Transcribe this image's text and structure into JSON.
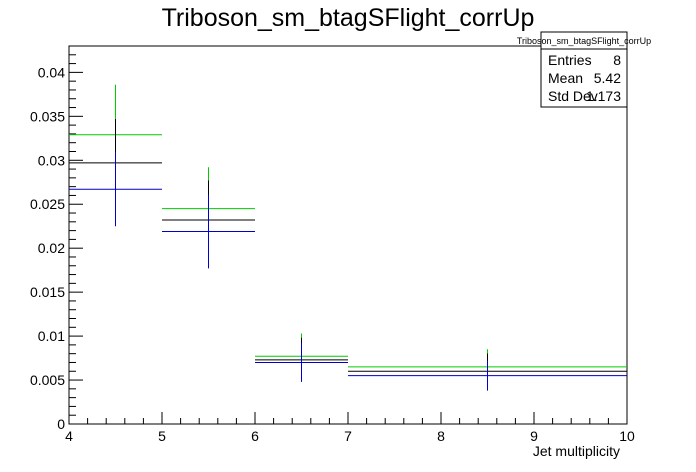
{
  "chart_data": {
    "type": "histogram-errorbars",
    "title": "Triboson_sm_btagSFlight_corrUp",
    "xlabel": "Jet multiplicity",
    "ylabel": "",
    "xlim": [
      4,
      10
    ],
    "ylim": [
      0,
      0.043
    ],
    "x_ticks": [
      4,
      5,
      6,
      7,
      8,
      9,
      10
    ],
    "y_ticks": [
      0,
      0.005,
      0.01,
      0.015,
      0.02,
      0.025,
      0.03,
      0.035,
      0.04
    ],
    "x_tick_labels": [
      "4",
      "5",
      "6",
      "7",
      "8",
      "9",
      "10"
    ],
    "y_tick_labels": [
      "0",
      "0.005",
      "0.01",
      "0.015",
      "0.02",
      "0.025",
      "0.03",
      "0.035",
      "0.04"
    ],
    "series": [
      {
        "color": "#00cc00",
        "bins": [
          {
            "xlow": 4,
            "xhigh": 5,
            "xc": 4.5,
            "y": 0.0329,
            "err": 0.0057
          },
          {
            "xlow": 5,
            "xhigh": 6,
            "xc": 5.5,
            "y": 0.0245,
            "err": 0.0047
          },
          {
            "xlow": 6,
            "xhigh": 7,
            "xc": 6.5,
            "y": 0.0077,
            "err": 0.0026
          },
          {
            "xlow": 7,
            "xhigh": 10,
            "xc": 8.5,
            "y": 0.0065,
            "err": 0.002
          }
        ]
      },
      {
        "color": "#000000",
        "bins": [
          {
            "xlow": 4,
            "xhigh": 5,
            "xc": 4.5,
            "y": 0.0297,
            "err": 0.005
          },
          {
            "xlow": 5,
            "xhigh": 6,
            "xc": 5.5,
            "y": 0.0232,
            "err": 0.0045
          },
          {
            "xlow": 6,
            "xhigh": 7,
            "xc": 6.5,
            "y": 0.0073,
            "err": 0.0025
          },
          {
            "xlow": 7,
            "xhigh": 10,
            "xc": 8.5,
            "y": 0.006,
            "err": 0.002
          }
        ]
      },
      {
        "color": "#0000cc",
        "bins": [
          {
            "xlow": 4,
            "xhigh": 5,
            "xc": 4.5,
            "y": 0.0267,
            "err": 0.0042
          },
          {
            "xlow": 5,
            "xhigh": 6,
            "xc": 5.5,
            "y": 0.0219,
            "err": 0.0042
          },
          {
            "xlow": 6,
            "xhigh": 7,
            "xc": 6.5,
            "y": 0.007,
            "err": 0.0022
          },
          {
            "xlow": 7,
            "xhigh": 10,
            "xc": 8.5,
            "y": 0.0055,
            "err": 0.0017
          }
        ]
      }
    ]
  },
  "stats": {
    "title": "Triboson_sm_btagSFlight_corrUp",
    "rows": [
      {
        "label": "Entries",
        "value": "8"
      },
      {
        "label": "Mean",
        "value": "5.42"
      },
      {
        "label": "Std Dev",
        "value": "1.173"
      }
    ]
  }
}
